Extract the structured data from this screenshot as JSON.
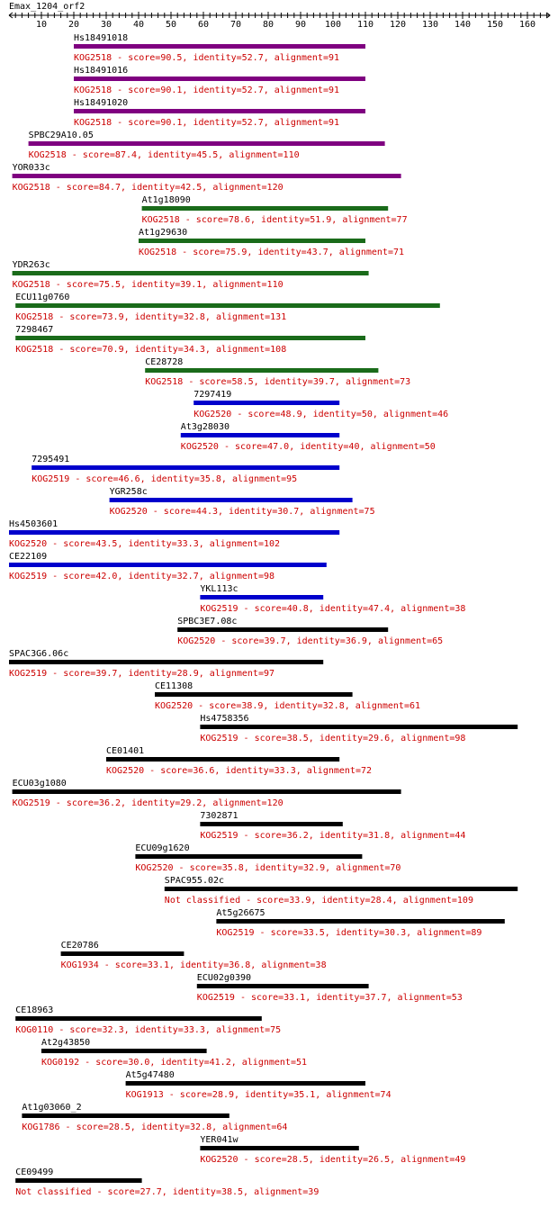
{
  "title": "Emax_1204_orf2",
  "colors": {
    "purple": "#7f0080",
    "green": "#1a6b1a",
    "blue": "#0000cc",
    "black": "#000000",
    "label_red": "#cc0000",
    "name_black": "#000000"
  },
  "axis": {
    "min": 0,
    "max": 167,
    "ticks": [
      10,
      20,
      30,
      40,
      50,
      60,
      70,
      80,
      90,
      100,
      110,
      120,
      130,
      140,
      150,
      160
    ]
  },
  "chart_data": {
    "type": "alignment-map",
    "query": "Emax_1204_orf2",
    "hits": [
      {
        "name": "Hs18491018",
        "start": 20,
        "end": 110,
        "color": "purple",
        "label": "KOG2518 - score=90.5, identity=52.7, alignment=91"
      },
      {
        "name": "Hs18491016",
        "start": 20,
        "end": 110,
        "color": "purple",
        "label": "KOG2518 - score=90.1, identity=52.7, alignment=91"
      },
      {
        "name": "Hs18491020",
        "start": 20,
        "end": 110,
        "color": "purple",
        "label": "KOG2518 - score=90.1, identity=52.7, alignment=91"
      },
      {
        "name": "SPBC29A10.05",
        "start": 6,
        "end": 116,
        "color": "purple",
        "label": "KOG2518 - score=87.4, identity=45.5, alignment=110"
      },
      {
        "name": "YOR033c",
        "start": 1,
        "end": 121,
        "color": "purple",
        "label": "KOG2518 - score=84.7, identity=42.5, alignment=120"
      },
      {
        "name": "At1g18090",
        "start": 41,
        "end": 117,
        "color": "green",
        "label": "KOG2518 - score=78.6, identity=51.9, alignment=77"
      },
      {
        "name": "At1g29630",
        "start": 40,
        "end": 110,
        "color": "green",
        "label": "KOG2518 - score=75.9, identity=43.7, alignment=71"
      },
      {
        "name": "YDR263c",
        "start": 1,
        "end": 111,
        "color": "green",
        "label": "KOG2518 - score=75.5, identity=39.1, alignment=110"
      },
      {
        "name": "ECU11g0760",
        "start": 2,
        "end": 133,
        "color": "green",
        "label": "KOG2518 - score=73.9, identity=32.8, alignment=131"
      },
      {
        "name": "7298467",
        "start": 2,
        "end": 110,
        "color": "green",
        "label": "KOG2518 - score=70.9, identity=34.3, alignment=108"
      },
      {
        "name": "CE28728",
        "start": 42,
        "end": 114,
        "color": "green",
        "label": "KOG2518 - score=58.5, identity=39.7, alignment=73"
      },
      {
        "name": "7297419",
        "start": 57,
        "end": 102,
        "color": "blue",
        "label": "KOG2520 - score=48.9, identity=50, alignment=46"
      },
      {
        "name": "At3g28030",
        "start": 53,
        "end": 102,
        "color": "blue",
        "label": "KOG2520 - score=47.0, identity=40, alignment=50"
      },
      {
        "name": "7295491",
        "start": 7,
        "end": 102,
        "color": "blue",
        "label": "KOG2519 - score=46.6, identity=35.8, alignment=95"
      },
      {
        "name": "YGR258c",
        "start": 31,
        "end": 106,
        "color": "blue",
        "label": "KOG2520 - score=44.3, identity=30.7, alignment=75"
      },
      {
        "name": "Hs4503601",
        "start": 0,
        "end": 102,
        "color": "blue",
        "label": "KOG2520 - score=43.5, identity=33.3, alignment=102"
      },
      {
        "name": "CE22109",
        "start": 0,
        "end": 98,
        "color": "blue",
        "label": "KOG2519 - score=42.0, identity=32.7, alignment=98"
      },
      {
        "name": "YKL113c",
        "start": 59,
        "end": 97,
        "color": "blue",
        "label": "KOG2519 - score=40.8, identity=47.4, alignment=38"
      },
      {
        "name": "SPBC3E7.08c",
        "start": 52,
        "end": 117,
        "color": "black",
        "label": "KOG2520 - score=39.7, identity=36.9, alignment=65"
      },
      {
        "name": "SPAC3G6.06c",
        "start": 0,
        "end": 97,
        "color": "black",
        "label": "KOG2519 - score=39.7, identity=28.9, alignment=97"
      },
      {
        "name": "CE11308",
        "start": 45,
        "end": 106,
        "color": "black",
        "label": "KOG2520 - score=38.9, identity=32.8, alignment=61"
      },
      {
        "name": "Hs4758356",
        "start": 59,
        "end": 157,
        "color": "black",
        "label": "KOG2519 - score=38.5, identity=29.6, alignment=98"
      },
      {
        "name": "CE01401",
        "start": 30,
        "end": 102,
        "color": "black",
        "label": "KOG2520 - score=36.6, identity=33.3, alignment=72"
      },
      {
        "name": "ECU03g1080",
        "start": 1,
        "end": 121,
        "color": "black",
        "label": "KOG2519 - score=36.2, identity=29.2, alignment=120"
      },
      {
        "name": "7302871",
        "start": 59,
        "end": 103,
        "color": "black",
        "label": "KOG2519 - score=36.2, identity=31.8, alignment=44"
      },
      {
        "name": "ECU09g1620",
        "start": 39,
        "end": 109,
        "color": "black",
        "label": "KOG2520 - score=35.8, identity=32.9, alignment=70"
      },
      {
        "name": "SPAC955.02c",
        "start": 48,
        "end": 157,
        "color": "black",
        "label": "Not classified - score=33.9, identity=28.4, alignment=109"
      },
      {
        "name": "At5g26675",
        "start": 64,
        "end": 153,
        "color": "black",
        "label": "KOG2519 - score=33.5, identity=30.3, alignment=89"
      },
      {
        "name": "CE20786",
        "start": 16,
        "end": 54,
        "color": "black",
        "label": "KOG1934 - score=33.1, identity=36.8, alignment=38"
      },
      {
        "name": "ECU02g0390",
        "start": 58,
        "end": 111,
        "color": "black",
        "label": "KOG2519 - score=33.1, identity=37.7, alignment=53"
      },
      {
        "name": "CE18963",
        "start": 2,
        "end": 78,
        "color": "black",
        "label": "KOG0110 - score=32.3, identity=33.3, alignment=75"
      },
      {
        "name": "At2g43850",
        "start": 10,
        "end": 61,
        "color": "black",
        "label": "KOG0192 - score=30.0, identity=41.2, alignment=51"
      },
      {
        "name": "At5g47480",
        "start": 36,
        "end": 110,
        "color": "black",
        "label": "KOG1913 - score=28.9, identity=35.1, alignment=74"
      },
      {
        "name": "At1g03060_2",
        "start": 4,
        "end": 68,
        "color": "black",
        "label": "KOG1786 - score=28.5, identity=32.8, alignment=64"
      },
      {
        "name": "YER041w",
        "start": 59,
        "end": 108,
        "color": "black",
        "label": "KOG2520 - score=28.5, identity=26.5, alignment=49"
      },
      {
        "name": "CE09499",
        "start": 2,
        "end": 41,
        "color": "black",
        "label": "Not classified - score=27.7, identity=38.5, alignment=39"
      }
    ]
  }
}
